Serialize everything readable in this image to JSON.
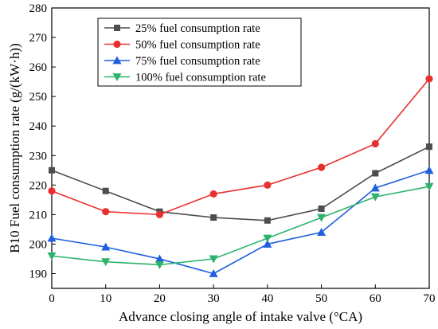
{
  "chart_data": {
    "type": "line",
    "xlabel": "Advance closing angle of intake valve (°CA)",
    "ylabel": "B10 Fuel consumption rate (g/(kW·h))",
    "x": [
      0,
      10,
      20,
      30,
      40,
      50,
      60,
      70
    ],
    "xlim": [
      0,
      70
    ],
    "ylim": [
      185,
      280
    ],
    "xticks": [
      "0",
      "10",
      "20",
      "30",
      "40",
      "50",
      "60",
      "70"
    ],
    "yticks": [
      "190",
      "200",
      "210",
      "220",
      "230",
      "240",
      "250",
      "260",
      "270",
      "280"
    ],
    "grid": false,
    "legend_position": "top-left",
    "series": [
      {
        "name": "25% fuel consumption rate",
        "color": "#4d4d4d",
        "marker": "square",
        "values": [
          225,
          218,
          211,
          209,
          208,
          212,
          224,
          233
        ]
      },
      {
        "name": "50% fuel consumption rate",
        "color": "#e8312f",
        "marker": "circle",
        "values": [
          218,
          211,
          210,
          217,
          220,
          226,
          234,
          256
        ]
      },
      {
        "name": "75% fuel consumption rate",
        "color": "#1f5fe0",
        "marker": "triangle-up",
        "values": [
          202,
          199,
          195,
          190,
          200,
          204,
          219,
          225
        ]
      },
      {
        "name": "100% fuel consumption rate",
        "color": "#2db36b",
        "marker": "triangle-down",
        "values": [
          196,
          194,
          193,
          195,
          202,
          209,
          216,
          219.5
        ]
      }
    ]
  }
}
